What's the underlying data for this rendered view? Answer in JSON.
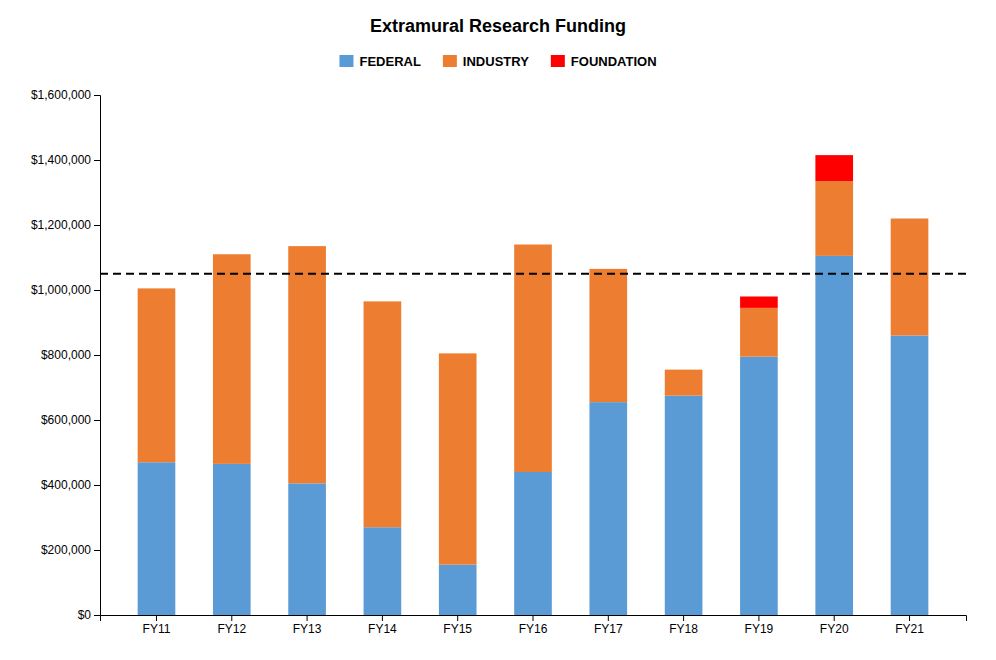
{
  "chart_data": {
    "type": "bar",
    "title": "Extramural Research Funding",
    "categories": [
      "FY11",
      "FY12",
      "FY13",
      "FY14",
      "FY15",
      "FY16",
      "FY17",
      "FY18",
      "FY19",
      "FY20",
      "FY21"
    ],
    "series": [
      {
        "name": "FEDERAL",
        "color": "#5B9BD5",
        "values": [
          470000,
          465000,
          405000,
          270000,
          155000,
          440000,
          655000,
          675000,
          795000,
          1105000,
          860000
        ]
      },
      {
        "name": "INDUSTRY",
        "color": "#ED7D31",
        "values": [
          535000,
          645000,
          730000,
          695000,
          650000,
          700000,
          410000,
          80000,
          150000,
          230000,
          360000
        ]
      },
      {
        "name": "FOUNDATION",
        "color": "#FF0000",
        "values": [
          0,
          0,
          0,
          0,
          0,
          0,
          0,
          0,
          35000,
          80000,
          0
        ]
      }
    ],
    "stacked": true,
    "hline": 1050000,
    "ylim": [
      0,
      1600000
    ],
    "yticks": [
      {
        "value": 0,
        "label": "$0"
      },
      {
        "value": 200000,
        "label": "$200,000"
      },
      {
        "value": 400000,
        "label": "$400,000"
      },
      {
        "value": 600000,
        "label": "$600,000"
      },
      {
        "value": 800000,
        "label": "$800,000"
      },
      {
        "value": 1000000,
        "label": "$1,000,000"
      },
      {
        "value": 1200000,
        "label": "$1,200,000"
      },
      {
        "value": 1400000,
        "label": "$1,400,000"
      },
      {
        "value": 1600000,
        "label": "$1,600,000"
      }
    ],
    "grid": false,
    "legend": "top"
  }
}
